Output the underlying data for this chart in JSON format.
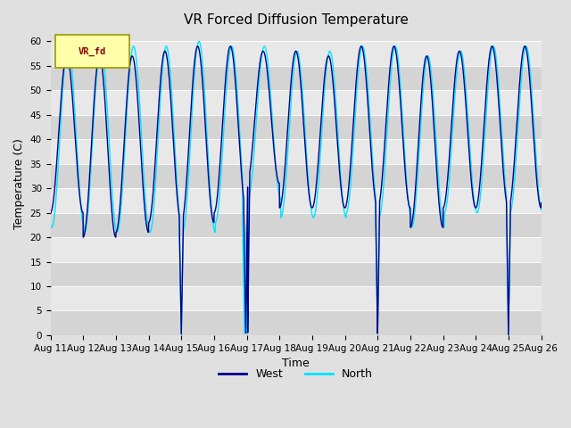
{
  "title": "VR Forced Diffusion Temperature",
  "xlabel": "Time",
  "ylabel": "Temperature (C)",
  "ylim": [
    0,
    62
  ],
  "legend_label": "VR_fd",
  "series": {
    "West": {
      "color": "#00008B",
      "linewidth": 1.0
    },
    "North": {
      "color": "#00E5FF",
      "linewidth": 1.0
    }
  },
  "x_tick_labels": [
    "Aug 11",
    "Aug 12",
    "Aug 13",
    "Aug 14",
    "Aug 15",
    "Aug 16",
    "Aug 17",
    "Aug 18",
    "Aug 19",
    "Aug 20",
    "Aug 21",
    "Aug 22",
    "Aug 23",
    "Aug 24",
    "Aug 25",
    "Aug 26"
  ],
  "fig_bg": "#E0E0E0",
  "band_colors": [
    "#D4D4D4",
    "#E8E8E8"
  ],
  "title_fontsize": 11,
  "axis_fontsize": 9,
  "tick_fontsize": 7.5
}
